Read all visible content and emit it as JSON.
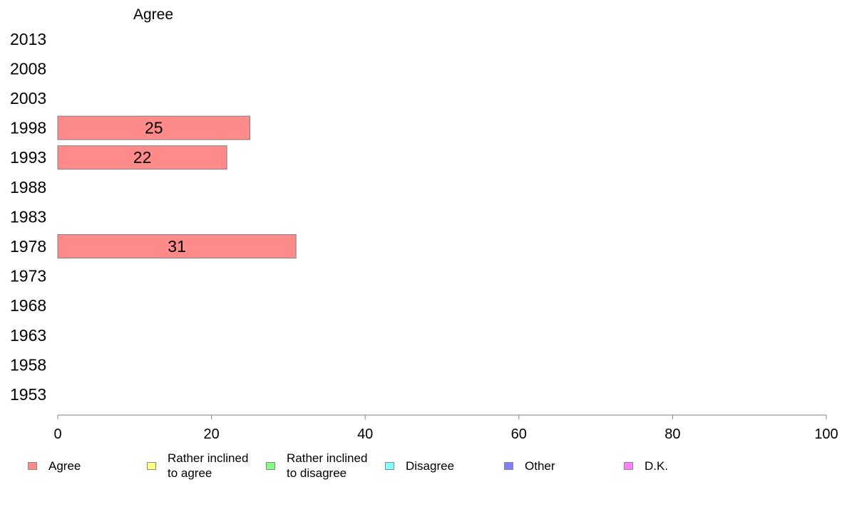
{
  "chart_data": {
    "type": "bar",
    "orientation": "horizontal",
    "title": "Agree",
    "categories": [
      "2013",
      "2008",
      "2003",
      "1998",
      "1993",
      "1988",
      "1983",
      "1978",
      "1973",
      "1968",
      "1963",
      "1958",
      "1953"
    ],
    "series": [
      {
        "name": "Agree",
        "color": "#ff8a8a",
        "values": [
          null,
          null,
          null,
          25,
          22,
          null,
          null,
          31,
          null,
          null,
          null,
          null,
          null
        ]
      }
    ],
    "xlim": [
      0,
      100
    ],
    "xticks": [
      "0",
      "20",
      "40",
      "60",
      "80",
      "100"
    ],
    "grid": false,
    "legend_position": "bottom"
  },
  "legend": [
    {
      "label": "Agree",
      "color": "#ff8a8a"
    },
    {
      "label": "Rather inclined\nto agree",
      "color": "#ffff80"
    },
    {
      "label": "Rather inclined\nto disagree",
      "color": "#80ff80"
    },
    {
      "label": "Disagree",
      "color": "#80ffff"
    },
    {
      "label": "Other",
      "color": "#8080ff"
    },
    {
      "label": "D.K.",
      "color": "#ff80ff"
    }
  ]
}
